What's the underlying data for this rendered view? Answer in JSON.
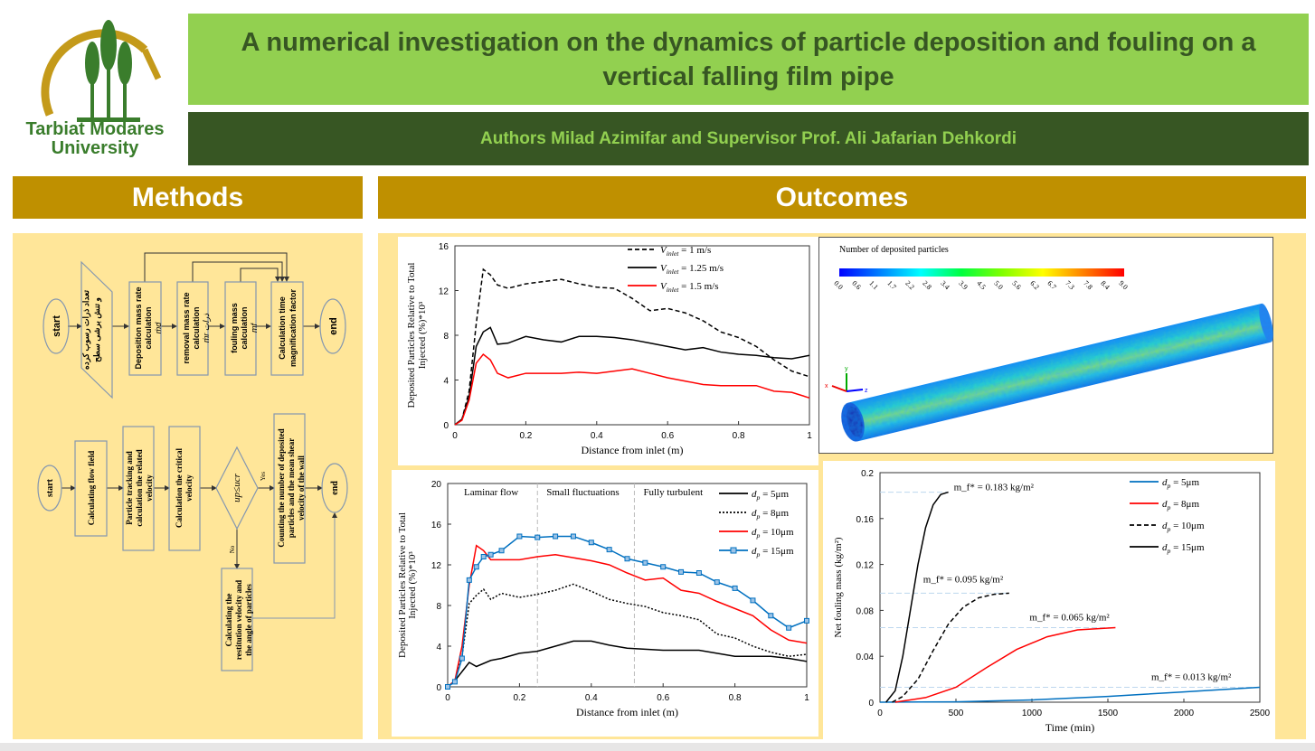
{
  "header": {
    "title": "A numerical investigation on the dynamics of particle deposition and fouling on a vertical falling film pipe",
    "authors": "Authors Milad Azimifar  and Supervisor Prof. Ali Jafarian Dehkordi",
    "logo_text": [
      "Tarbiat Modares",
      "University"
    ],
    "colors": {
      "title_bg": "#92d050",
      "title_text": "#375623",
      "authors_bg": "#375623",
      "authors_text": "#92d050",
      "section_bg": "#bf9000",
      "panel_bg": "#ffe699"
    }
  },
  "methods": {
    "heading": "Methods",
    "flowchart_top": {
      "start": "start",
      "input": [
        "تعداد ذرات رسوب کرده",
        "و تنش برشی سطح"
      ],
      "deposition": [
        "Deposition mass rate",
        "calculation",
        "ṁd"
      ],
      "removal": [
        "removal mass rate",
        "calculation",
        "ṁr ذرات"
      ],
      "fouling": [
        "fouling mass",
        "calculation",
        "mf"
      ],
      "time_factor": [
        "Calculation time",
        "magnification factor"
      ],
      "end": "end"
    },
    "flowchart_bottom": {
      "start": "start",
      "flow_field": [
        "Calculating flow field"
      ],
      "tracking": [
        "Particle tracking and",
        "calculation the related",
        "velocity"
      ],
      "critical": [
        "Calculation the critical",
        "velocity"
      ],
      "decision": "up≤ucr",
      "yes": "Yes",
      "no": "No",
      "counting": [
        "Counting the number of deposited",
        "particles and the mean shear",
        "velocity of the wall"
      ],
      "restitution": [
        "Calculating the",
        "restitution velocity and",
        "the angle of particles"
      ],
      "end": "end"
    }
  },
  "outcomes": {
    "heading": "Outcomes",
    "contour": {
      "title": "Number of deposited particles",
      "ticks": [
        "0.0",
        "0.6",
        "1.1",
        "1.7",
        "2.2",
        "2.8",
        "3.4",
        "3.9",
        "4.5",
        "5.0",
        "5.6",
        "6.2",
        "6.7",
        "7.3",
        "7.8",
        "8.4",
        "9.0"
      ],
      "axes": [
        "x",
        "y",
        "z"
      ]
    }
  },
  "chart_data": [
    {
      "type": "line",
      "xlabel": "Distance from inlet (m)",
      "ylabel": [
        "Deposited Particles Relative to Total",
        "Injected (%)*10³"
      ],
      "xlim": [
        0,
        1
      ],
      "ylim": [
        0,
        16
      ],
      "xticks": [
        "0",
        "0.2",
        "0.4",
        "0.6",
        "0.8",
        "1"
      ],
      "yticks": [
        "0",
        "4",
        "8",
        "12",
        "16"
      ],
      "legend": "top-right",
      "x": [
        0,
        0.02,
        0.04,
        0.06,
        0.08,
        0.1,
        0.12,
        0.15,
        0.2,
        0.25,
        0.3,
        0.35,
        0.4,
        0.45,
        0.5,
        0.55,
        0.6,
        0.65,
        0.7,
        0.75,
        0.8,
        0.85,
        0.9,
        0.95,
        1.0
      ],
      "series": [
        {
          "name": "V_inlet = 1 m/s",
          "color": "#000000",
          "style": "dashed",
          "values": [
            0,
            0.5,
            3,
            9,
            13.9,
            13.4,
            12.5,
            12.2,
            12.6,
            12.8,
            13.0,
            12.6,
            12.3,
            12.2,
            11.3,
            10.2,
            10.4,
            10.0,
            9.3,
            8.3,
            7.8,
            7.0,
            5.8,
            4.8,
            4.3
          ]
        },
        {
          "name": "V_inlet = 1.25 m/s",
          "color": "#000000",
          "style": "solid",
          "values": [
            0,
            0.5,
            2.5,
            7,
            8.3,
            8.7,
            7.2,
            7.3,
            7.9,
            7.6,
            7.4,
            7.9,
            7.9,
            7.8,
            7.6,
            7.3,
            7.0,
            6.7,
            6.9,
            6.5,
            6.3,
            6.2,
            6.0,
            5.9,
            6.2
          ]
        },
        {
          "name": "V_inlet = 1.5 m/s",
          "color": "#ff0000",
          "style": "solid",
          "values": [
            0,
            0.4,
            2.2,
            5.5,
            6.3,
            5.8,
            4.6,
            4.2,
            4.6,
            4.6,
            4.6,
            4.7,
            4.6,
            4.8,
            5.0,
            4.6,
            4.2,
            3.9,
            3.6,
            3.5,
            3.5,
            3.5,
            3.0,
            2.9,
            2.4
          ]
        }
      ]
    },
    {
      "type": "line",
      "xlabel": "Distance from inlet (m)",
      "ylabel": [
        "Deposited Particles Relative to Total",
        "Injected (%)*10³"
      ],
      "xlim": [
        0,
        1
      ],
      "ylim": [
        0,
        20
      ],
      "xticks": [
        "0",
        "0.2",
        "0.4",
        "0.6",
        "0.8",
        "1"
      ],
      "yticks": [
        "0",
        "4",
        "8",
        "12",
        "16",
        "20"
      ],
      "legend": "top-right",
      "regions": [
        {
          "label": "Laminar flow",
          "from": 0,
          "to": 0.25
        },
        {
          "label": "Small fluctuations",
          "from": 0.25,
          "to": 0.52
        },
        {
          "label": "Fully turbulent",
          "from": 0.52,
          "to": 1
        }
      ],
      "x": [
        0,
        0.02,
        0.04,
        0.06,
        0.08,
        0.1,
        0.12,
        0.15,
        0.2,
        0.25,
        0.3,
        0.35,
        0.4,
        0.45,
        0.5,
        0.55,
        0.6,
        0.65,
        0.7,
        0.75,
        0.8,
        0.85,
        0.9,
        0.95,
        1.0
      ],
      "series": [
        {
          "name": "d_p = 5μm",
          "color": "#000000",
          "style": "solid",
          "values": [
            0,
            0.6,
            1.5,
            2.4,
            2.0,
            2.3,
            2.6,
            2.8,
            3.3,
            3.5,
            4.0,
            4.5,
            4.5,
            4.1,
            3.8,
            3.7,
            3.6,
            3.6,
            3.6,
            3.3,
            3.0,
            3.0,
            3.0,
            2.8,
            2.5
          ]
        },
        {
          "name": "d_p = 8μm",
          "color": "#000000",
          "style": "dotted",
          "values": [
            0,
            0.6,
            3,
            8.2,
            9.0,
            9.6,
            8.6,
            9.2,
            8.8,
            9.1,
            9.5,
            10.1,
            9.4,
            8.6,
            8.2,
            7.9,
            7.3,
            7.0,
            6.6,
            5.2,
            4.8,
            4.0,
            3.4,
            3.0,
            3.2
          ]
        },
        {
          "name": "d_p = 10μm",
          "color": "#ff0000",
          "style": "solid",
          "values": [
            0,
            0.6,
            4,
            10,
            13.9,
            13.4,
            12.5,
            12.5,
            12.5,
            12.8,
            13.0,
            12.7,
            12.4,
            12.0,
            11.2,
            10.5,
            10.7,
            9.5,
            9.2,
            8.4,
            7.7,
            7.0,
            5.6,
            4.6,
            4.3
          ]
        },
        {
          "name": "d_p = 15μm",
          "color": "#0070c0",
          "style": "solid-square-markers",
          "values": [
            0,
            0.5,
            2.8,
            10.5,
            11.8,
            12.8,
            13.0,
            13.4,
            14.8,
            14.7,
            14.8,
            14.8,
            14.2,
            13.5,
            12.6,
            12.2,
            11.8,
            11.3,
            11.2,
            10.3,
            9.7,
            8.5,
            7.0,
            5.8,
            6.5
          ]
        }
      ]
    },
    {
      "type": "line",
      "xlabel": "Time (min)",
      "ylabel": [
        "Net fouling mass (kg/m²)"
      ],
      "xlim": [
        0,
        2500
      ],
      "ylim": [
        0,
        0.2
      ],
      "xticks": [
        "0",
        "500",
        "1000",
        "1500",
        "2000",
        "2500"
      ],
      "yticks": [
        "0",
        "0.04",
        "0.08",
        "0.12",
        "0.16",
        "0.2"
      ],
      "legend": "top-right",
      "series": [
        {
          "name": "d_p = 5μm",
          "color": "#0070c0",
          "style": "solid",
          "x": [
            0,
            500,
            1000,
            1500,
            2000,
            2500
          ],
          "values": [
            0,
            0.0003,
            0.002,
            0.005,
            0.009,
            0.013
          ],
          "asymptote": 0.013,
          "annotation": "m_f* = 0.013 kg/m²"
        },
        {
          "name": "d_p = 8μm",
          "color": "#ff0000",
          "style": "solid",
          "x": [
            100,
            300,
            500,
            700,
            900,
            1100,
            1300,
            1550
          ],
          "values": [
            0,
            0.004,
            0.013,
            0.03,
            0.046,
            0.057,
            0.063,
            0.065
          ],
          "asymptote": 0.065,
          "annotation": "m_f* = 0.065 kg/m²"
        },
        {
          "name": "d_p = 10μm",
          "color": "#000000",
          "style": "dashed",
          "x": [
            80,
            150,
            250,
            350,
            450,
            550,
            650,
            750,
            850
          ],
          "values": [
            0,
            0.005,
            0.02,
            0.045,
            0.068,
            0.083,
            0.091,
            0.094,
            0.095
          ],
          "asymptote": 0.095,
          "annotation": "m_f* = 0.095 kg/m²"
        },
        {
          "name": "d_p = 15μm",
          "color": "#000000",
          "style": "solid",
          "x": [
            40,
            100,
            150,
            200,
            250,
            300,
            350,
            400,
            450
          ],
          "values": [
            0,
            0.01,
            0.04,
            0.08,
            0.12,
            0.152,
            0.172,
            0.181,
            0.183
          ],
          "asymptote": 0.183,
          "annotation": "m_f* = 0.183 kg/m²"
        }
      ]
    }
  ]
}
